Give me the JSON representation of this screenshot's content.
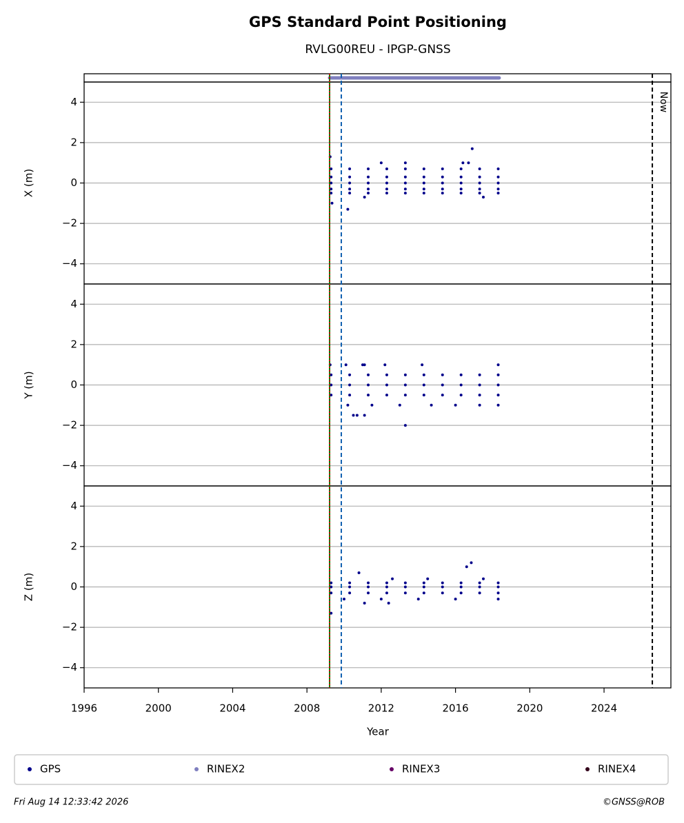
{
  "title": "GPS Standard Point Positioning",
  "subtitle": "RVLG00REU - IPGP-GNSS",
  "x_label": "Year",
  "xlim": [
    1996,
    2027.6
  ],
  "xticks": [
    1996,
    2000,
    2004,
    2008,
    2012,
    2016,
    2020,
    2024
  ],
  "markers": [
    {
      "x": 2009.22,
      "color": "#008000",
      "style": "solid"
    },
    {
      "x": 2009.22,
      "color": "#d00000",
      "style": "dotted"
    },
    {
      "x": 2009.85,
      "color": "#1060b0",
      "style": "dashed"
    },
    {
      "x": 2026.6,
      "color": "#000000",
      "style": "dashed",
      "label": "Now"
    }
  ],
  "rinex2": {
    "start": 2009.22,
    "end": 2018.35,
    "color": "#7f7fbf"
  },
  "legend": [
    {
      "name": "GPS",
      "color": "#00008b"
    },
    {
      "name": "RINEX2",
      "color": "#7f7fbf"
    },
    {
      "name": "RINEX3",
      "color": "#660066"
    },
    {
      "name": "RINEX4",
      "color": "#33001a"
    }
  ],
  "timestamp": "Fri Aug 14 12:33:42 2026",
  "credit": "©GNSS@ROB",
  "chart_data": [
    {
      "type": "scatter",
      "y_label": "X (m)",
      "ylim": [
        -5,
        5
      ],
      "yticks": [
        {
          "value": -4,
          "label": "−4"
        },
        {
          "value": -2,
          "label": "−2"
        },
        0,
        2,
        4
      ],
      "grid": true,
      "series": [
        {
          "name": "GPS",
          "color": "#00008b",
          "x": [
            2009.3,
            2010.3,
            2011.3,
            2012.3,
            2013.3,
            2014.3,
            2015.3,
            2016.3,
            2017.3,
            2018.3,
            2009.3,
            2010.3,
            2011.3,
            2012.3,
            2013.3,
            2014.3,
            2015.3,
            2016.3,
            2017.3,
            2018.3,
            2009.3,
            2010.3,
            2011.3,
            2012.3,
            2013.3,
            2014.3,
            2015.3,
            2016.3,
            2017.3,
            2018.3,
            2009.3,
            2010.3,
            2011.3,
            2012.3,
            2013.3,
            2014.3,
            2015.3,
            2016.3,
            2017.3,
            2018.3,
            2009.3,
            2010.3,
            2011.3,
            2012.3,
            2013.3,
            2014.3,
            2015.3,
            2016.3,
            2017.3,
            2018.3,
            2009.25,
            2009.35,
            2010.2,
            2011.1,
            2012.0,
            2013.3,
            2016.4,
            2016.7,
            2016.9,
            2017.5
          ],
          "values": [
            0.7,
            0.7,
            0.7,
            0.7,
            0.7,
            0.7,
            0.7,
            0.7,
            0.7,
            0.7,
            0.3,
            0.3,
            0.3,
            0.3,
            0.3,
            0.3,
            0.3,
            0.3,
            0.3,
            0.3,
            0,
            0,
            0,
            0,
            0,
            0,
            0,
            0,
            0,
            0,
            -0.3,
            -0.3,
            -0.3,
            -0.3,
            -0.3,
            -0.3,
            -0.3,
            -0.3,
            -0.3,
            -0.3,
            -0.5,
            -0.5,
            -0.5,
            -0.5,
            -0.5,
            -0.5,
            -0.5,
            -0.5,
            -0.5,
            -0.5,
            1.3,
            -1.0,
            -1.3,
            -0.7,
            1.0,
            1.0,
            1.0,
            1.0,
            1.7,
            -0.7
          ]
        }
      ]
    },
    {
      "type": "scatter",
      "y_label": "Y (m)",
      "ylim": [
        -5,
        5
      ],
      "yticks": [
        {
          "value": -4,
          "label": "−4"
        },
        {
          "value": -2,
          "label": "−2"
        },
        0,
        2,
        4
      ],
      "grid": true,
      "series": [
        {
          "name": "GPS",
          "color": "#00008b",
          "x": [
            2009.3,
            2010.3,
            2011.3,
            2012.3,
            2013.3,
            2014.3,
            2015.3,
            2016.3,
            2017.3,
            2018.3,
            2009.3,
            2010.3,
            2011.3,
            2012.3,
            2013.3,
            2014.3,
            2015.3,
            2016.3,
            2017.3,
            2018.3,
            2009.3,
            2010.3,
            2011.3,
            2012.3,
            2013.3,
            2014.3,
            2015.3,
            2016.3,
            2017.3,
            2018.3,
            2010.2,
            2011.5,
            2013.0,
            2014.7,
            2016.0,
            2017.3,
            2018.3,
            2009.25,
            2010.1,
            2011.0,
            2011.1,
            2012.2,
            2014.2,
            2018.3,
            2010.5,
            2010.7,
            2011.1,
            2013.3
          ],
          "values": [
            0.5,
            0.5,
            0.5,
            0.5,
            0.5,
            0.5,
            0.5,
            0.5,
            0.5,
            0.5,
            0,
            0,
            0,
            0,
            0,
            0,
            0,
            0,
            0,
            0,
            -0.5,
            -0.5,
            -0.5,
            -0.5,
            -0.5,
            -0.5,
            -0.5,
            -0.5,
            -0.5,
            -0.5,
            -1.0,
            -1.0,
            -1.0,
            -1.0,
            -1.0,
            -1.0,
            -1.0,
            1.0,
            1.0,
            1.0,
            1.0,
            1.0,
            1.0,
            1.0,
            -1.5,
            -1.5,
            -1.5,
            -2.0
          ]
        }
      ]
    },
    {
      "type": "scatter",
      "y_label": "Z (m)",
      "ylim": [
        -5,
        5
      ],
      "yticks": [
        {
          "value": -4,
          "label": "−4"
        },
        {
          "value": -2,
          "label": "−2"
        },
        0,
        2,
        4
      ],
      "grid": true,
      "series": [
        {
          "name": "GPS",
          "color": "#00008b",
          "x": [
            2009.3,
            2010.3,
            2011.3,
            2012.3,
            2013.3,
            2014.3,
            2015.3,
            2016.3,
            2017.3,
            2018.3,
            2009.3,
            2010.3,
            2011.3,
            2012.3,
            2013.3,
            2014.3,
            2015.3,
            2016.3,
            2017.3,
            2018.3,
            2009.3,
            2010.3,
            2011.3,
            2012.3,
            2013.3,
            2014.3,
            2015.3,
            2016.3,
            2017.3,
            2018.3,
            2010.0,
            2012.0,
            2014.0,
            2016.0,
            2018.3,
            2009.3,
            2010.8,
            2011.1,
            2012.4,
            2016.6,
            2016.85,
            2012.6,
            2014.5,
            2017.5
          ],
          "values": [
            0.2,
            0.2,
            0.2,
            0.2,
            0.2,
            0.2,
            0.2,
            0.2,
            0.2,
            0.2,
            0,
            0,
            0,
            0,
            0,
            0,
            0,
            0,
            0,
            0,
            -0.3,
            -0.3,
            -0.3,
            -0.3,
            -0.3,
            -0.3,
            -0.3,
            -0.3,
            -0.3,
            -0.3,
            -0.6,
            -0.6,
            -0.6,
            -0.6,
            -0.6,
            -1.3,
            0.7,
            -0.8,
            -0.8,
            1.0,
            1.2,
            0.4,
            0.4,
            0.4
          ]
        }
      ]
    }
  ]
}
